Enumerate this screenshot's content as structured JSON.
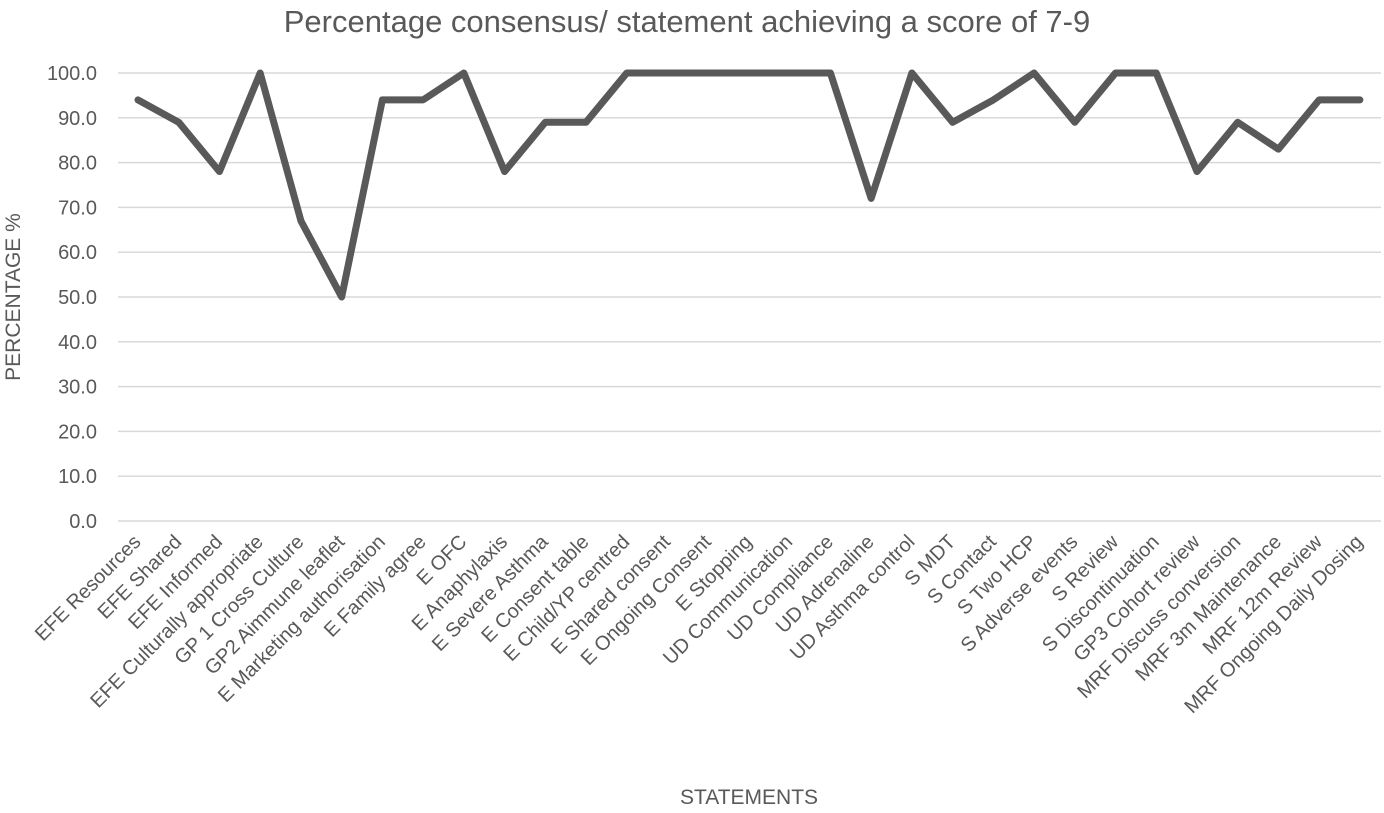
{
  "chart_data": {
    "type": "line",
    "title": "Percentage consensus/ statement achieving a score of 7-9",
    "xlabel": "STATEMENTS",
    "ylabel": "PERCENTAGE %",
    "ylim": [
      0,
      100
    ],
    "yticks": [
      "0.0",
      "10.0",
      "20.0",
      "30.0",
      "40.0",
      "50.0",
      "60.0",
      "70.0",
      "80.0",
      "90.0",
      "100.0"
    ],
    "grid": true,
    "line_color": "#595959",
    "categories": [
      "EFE Resources",
      "EFE Shared",
      "EFE Informed",
      "EFE Culturally appropriate",
      "GP 1 Cross Culture",
      "GP2 Aimmune leaflet",
      "E Marketing authorisation",
      "E Family agree",
      "E OFC",
      "E Anaphylaxis",
      "E Severe Asthma",
      "E Consent table",
      "E Child/YP centred",
      "E Shared consent",
      "E Ongoing Consent",
      "E Stopping",
      "UD Communication",
      "UD Compliance",
      "UD Adrenaline",
      "UD Asthma control",
      "S MDT",
      "S Contact",
      "S Two HCP",
      "S Adverse events",
      "S Review",
      "S Discontinuation",
      "GP3 Cohort review",
      "MRF Discuss conversion",
      "MRF 3m Maintenance",
      "MRF 12m Review",
      "MRF Ongoing Daily Dosing"
    ],
    "series": [
      {
        "values": [
          94,
          89,
          78,
          100,
          67,
          50,
          94,
          94,
          100,
          78,
          89,
          89,
          100,
          100,
          100,
          100,
          100,
          100,
          72,
          100,
          89,
          94,
          100,
          89,
          100,
          100,
          78,
          89,
          83,
          94,
          94
        ]
      }
    ]
  }
}
